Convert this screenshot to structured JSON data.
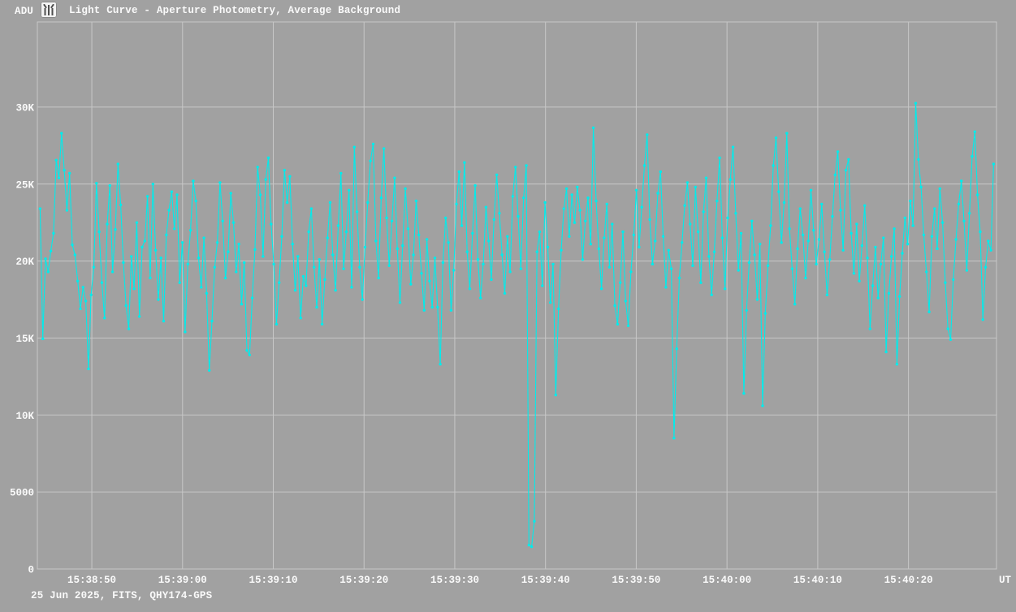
{
  "header": {
    "y_axis_unit": "ADU",
    "title": "Light Curve - Aperture Photometry, Average Background"
  },
  "footer": {
    "info": "25 Jun 2025, FITS, QHY174-GPS"
  },
  "chart_data": {
    "type": "line",
    "title": "Light Curve - Aperture Photometry, Average Background",
    "ylabel": "ADU",
    "xlabel": "UT",
    "grid": true,
    "legend": "none",
    "start_time": "15:38:44",
    "sample_interval_s": 0.296,
    "first_sample_offset_s": 0.3,
    "x_tick_labels": [
      "15:38:50",
      "15:39:00",
      "15:39:10",
      "15:39:20",
      "15:39:30",
      "15:39:40",
      "15:39:50",
      "15:40:00",
      "15:40:10",
      "15:40:20"
    ],
    "x_tick_times_s": [
      6,
      16,
      26,
      36,
      46,
      56,
      66,
      76,
      86,
      96
    ],
    "x_axis_end_label": "UT",
    "xlim_s": [
      0,
      105.7
    ],
    "y_tick_labels": [
      "0",
      "5000",
      "10K",
      "15K",
      "20K",
      "25K",
      "30K"
    ],
    "y_tick_values": [
      0,
      5000,
      10000,
      15000,
      20000,
      25000,
      30000
    ],
    "ylim": [
      0,
      35530
    ],
    "colors": {
      "background": "#A1A1A1",
      "grid": "#C7C7C7",
      "text": "#FAFAFA",
      "data": "#00ECEC"
    },
    "series": [
      {
        "name": "aperture-photometry-adu",
        "color": "#00ECEC",
        "values": [
          23400,
          14950,
          20150,
          19300,
          20650,
          21800,
          26550,
          25400,
          28300,
          25900,
          23300,
          25700,
          21050,
          20400,
          18700,
          16900,
          18300,
          17400,
          13000,
          17800,
          19600,
          25050,
          21900,
          18600,
          16300,
          22400,
          24900,
          19300,
          22050,
          26300,
          23650,
          19900,
          17100,
          15600,
          20300,
          18200,
          22500,
          16400,
          20900,
          21300,
          24200,
          18900,
          25000,
          20700,
          17500,
          20200,
          16100,
          21700,
          23300,
          24500,
          22100,
          24300,
          18600,
          21200,
          15400,
          19800,
          22000,
          25200,
          23900,
          20200,
          18300,
          21500,
          17900,
          12900,
          16100,
          19600,
          21200,
          25100,
          22600,
          18900,
          20600,
          24400,
          22500,
          19300,
          21100,
          17200,
          19900,
          14200,
          13900,
          17600,
          20750,
          26100,
          24300,
          20300,
          25300,
          26700,
          22400,
          19800,
          15900,
          18600,
          21600,
          25900,
          23800,
          25500,
          21100,
          18100,
          20300,
          16300,
          19000,
          18400,
          21900,
          23400,
          19600,
          17000,
          20100,
          15900,
          18800,
          21500,
          23800,
          20400,
          18100,
          22300,
          25700,
          19500,
          21900,
          24600,
          18300,
          27400,
          23200,
          19600,
          17500,
          20900,
          23800,
          26500,
          27600,
          21300,
          18900,
          24100,
          27300,
          22800,
          19700,
          22600,
          25400,
          20800,
          17300,
          21000,
          24700,
          22100,
          18500,
          20400,
          23900,
          21700,
          19200,
          16800,
          21400,
          18700,
          17000,
          20200,
          17000,
          13300,
          19900,
          22800,
          21200,
          16800,
          19400,
          23700,
          25800,
          22300,
          26400,
          20600,
          18200,
          21800,
          24900,
          20100,
          17600,
          19800,
          23500,
          21300,
          18800,
          22700,
          25600,
          23100,
          20400,
          17900,
          21600,
          19300,
          24200,
          26100,
          22900,
          19500,
          24100,
          26200,
          1550,
          1450,
          3100,
          20600,
          21900,
          18400,
          23800,
          20900,
          17300,
          19800,
          11300,
          16900,
          20700,
          23400,
          24700,
          21600,
          24300,
          22500,
          24800,
          23300,
          20100,
          22600,
          24100,
          21100,
          28650,
          23900,
          20800,
          18200,
          21500,
          23700,
          19600,
          22400,
          17100,
          15900,
          18600,
          21900,
          17400,
          15800,
          19300,
          21700,
          24600,
          20900,
          23500,
          26200,
          28200,
          22700,
          19800,
          21300,
          24400,
          25800,
          21600,
          18300,
          20700,
          19500,
          8500,
          14300,
          18900,
          21200,
          23600,
          25100,
          22400,
          19700,
          24800,
          21900,
          18600,
          23200,
          25400,
          20300,
          17800,
          20600,
          23900,
          26700,
          21500,
          18200,
          22800,
          25300,
          27400,
          23100,
          19400,
          21800,
          11400,
          16800,
          19900,
          22600,
          20400,
          17500,
          21100,
          10600,
          16600,
          19700,
          22300,
          26200,
          28000,
          24500,
          21200,
          23800,
          28300,
          22100,
          19500,
          17200,
          20800,
          23400,
          21700,
          18900,
          21300,
          24600,
          22000,
          19800,
          21400,
          23700,
          20600,
          17800,
          20100,
          22900,
          25600,
          27100,
          23300,
          20700,
          25900,
          26600,
          21800,
          19200,
          22400,
          18700,
          21000,
          23600,
          20200,
          15600,
          18400,
          20900,
          17600,
          19800,
          21500,
          14100,
          17900,
          20300,
          22100,
          13300,
          17700,
          20500,
          22800,
          21100,
          23900,
          22300,
          30250,
          26600,
          24800,
          21700,
          19300,
          16700,
          21600,
          23400,
          20800,
          24700,
          22500,
          18600,
          15600,
          14900,
          18800,
          21400,
          23700,
          25200,
          22600,
          19400,
          23100,
          26800,
          28400,
          24300,
          21900,
          16200,
          19600,
          21300,
          20700,
          26300
        ]
      }
    ]
  }
}
